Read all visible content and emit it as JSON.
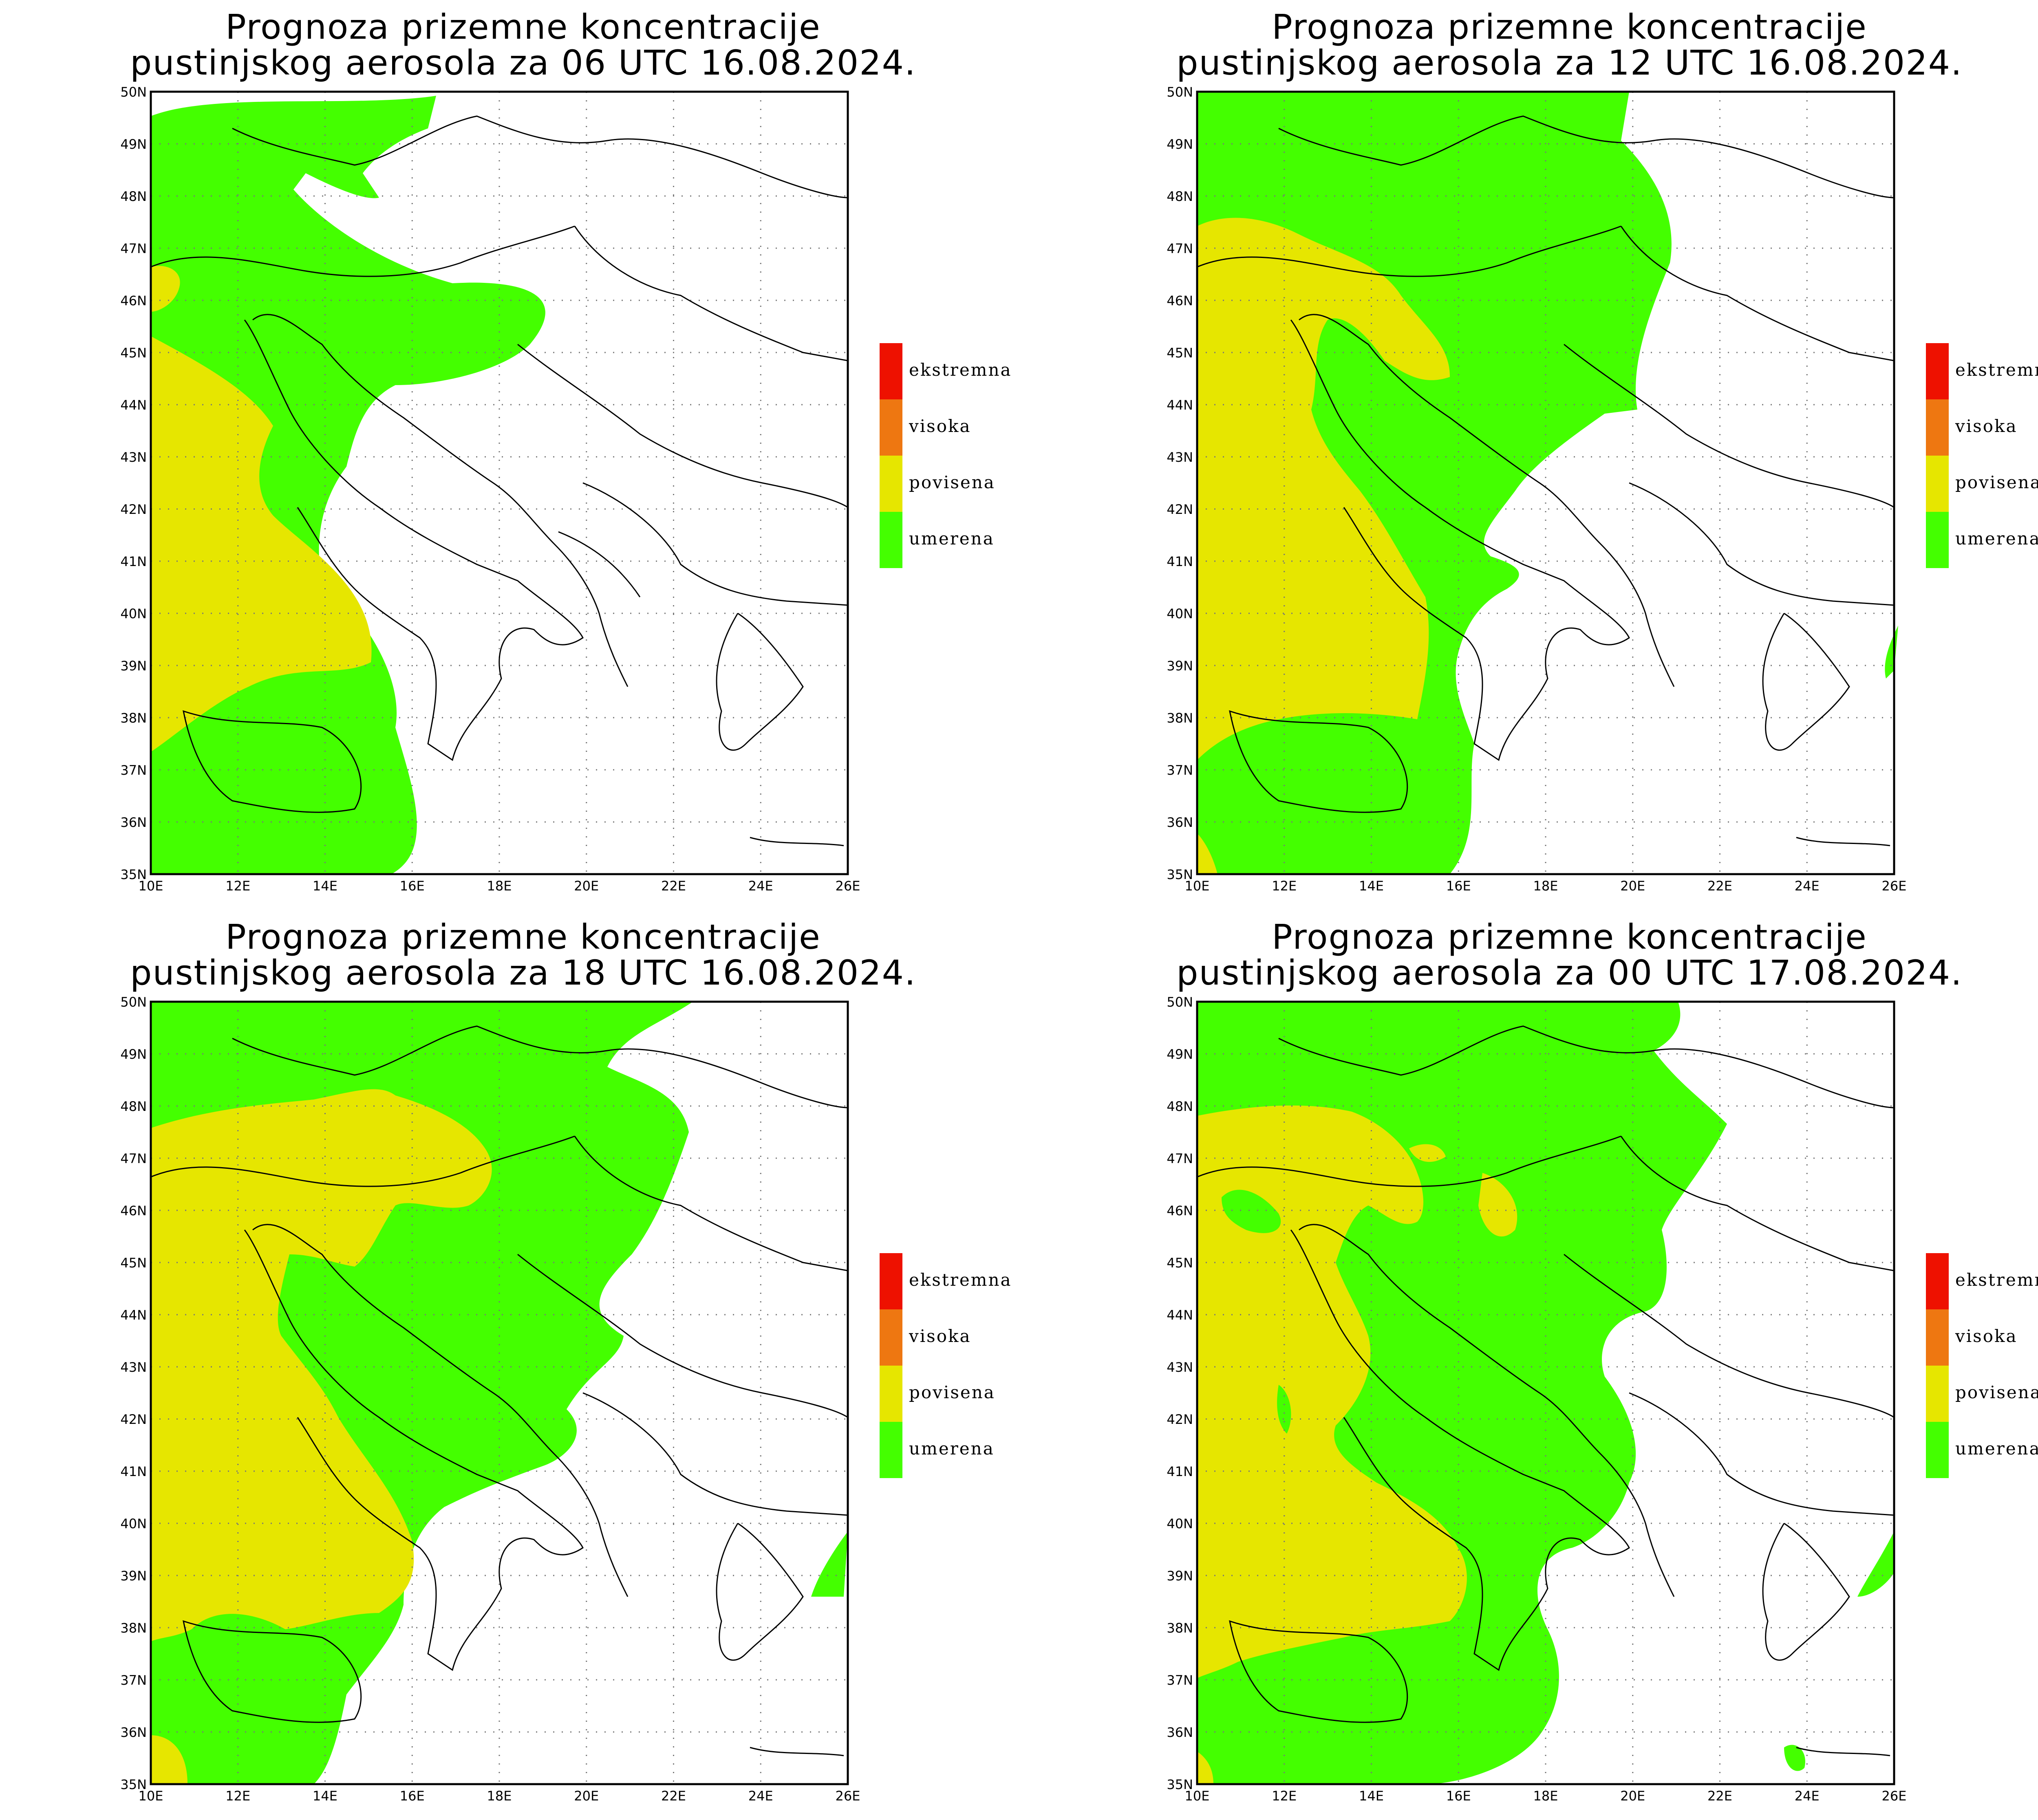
{
  "panels": [
    {
      "title_line1": "Prognoza prizemne koncentracije",
      "title_line2": "pustinjskog aerosola za 06 UTC 16.08.2024.",
      "legend": [
        {
          "label": "ekstremna",
          "color": "#ee1100"
        },
        {
          "label": "visoka",
          "color": "#ee7711"
        },
        {
          "label": "povisena",
          "color": "#e6e600"
        },
        {
          "label": "umerena",
          "color": "#44ff00"
        }
      ]
    },
    {
      "title_line1": "Prognoza prizemne koncentracije",
      "title_line2": "pustinjskog aerosola za 12 UTC 16.08.2024.",
      "legend": [
        {
          "label": "ekstremna",
          "color": "#ee1100"
        },
        {
          "label": "visoka",
          "color": "#ee7711"
        },
        {
          "label": "povisena",
          "color": "#e6e600"
        },
        {
          "label": "umerena",
          "color": "#44ff00"
        }
      ]
    },
    {
      "title_line1": "Prognoza prizemne koncentracije",
      "title_line2": "pustinjskog aerosola za 18 UTC 16.08.2024.",
      "legend": [
        {
          "label": "ekstremna",
          "color": "#ee1100"
        },
        {
          "label": "visoka",
          "color": "#ee7711"
        },
        {
          "label": "povisena",
          "color": "#e6e600"
        },
        {
          "label": "umerena",
          "color": "#44ff00"
        }
      ]
    },
    {
      "title_line1": "Prognoza prizemne koncentracije",
      "title_line2": "pustinjskog aerosola za 00 UTC 17.08.2024.",
      "legend": [
        {
          "label": "ekstremna",
          "color": "#ee1100"
        },
        {
          "label": "visoka",
          "color": "#ee7711"
        },
        {
          "label": "povisena",
          "color": "#e6e600"
        },
        {
          "label": "umerena",
          "color": "#44ff00"
        }
      ]
    }
  ],
  "map": {
    "lon_ticks": [
      "10E",
      "12E",
      "14E",
      "16E",
      "18E",
      "20E",
      "22E",
      "24E",
      "26E"
    ],
    "lat_ticks": [
      "35N",
      "36N",
      "37N",
      "38N",
      "39N",
      "40N",
      "41N",
      "42N",
      "43N",
      "44N",
      "45N",
      "46N",
      "47N",
      "48N",
      "49N",
      "50N"
    ],
    "lon_range": [
      10,
      26
    ],
    "lat_range": [
      35,
      50
    ]
  }
}
